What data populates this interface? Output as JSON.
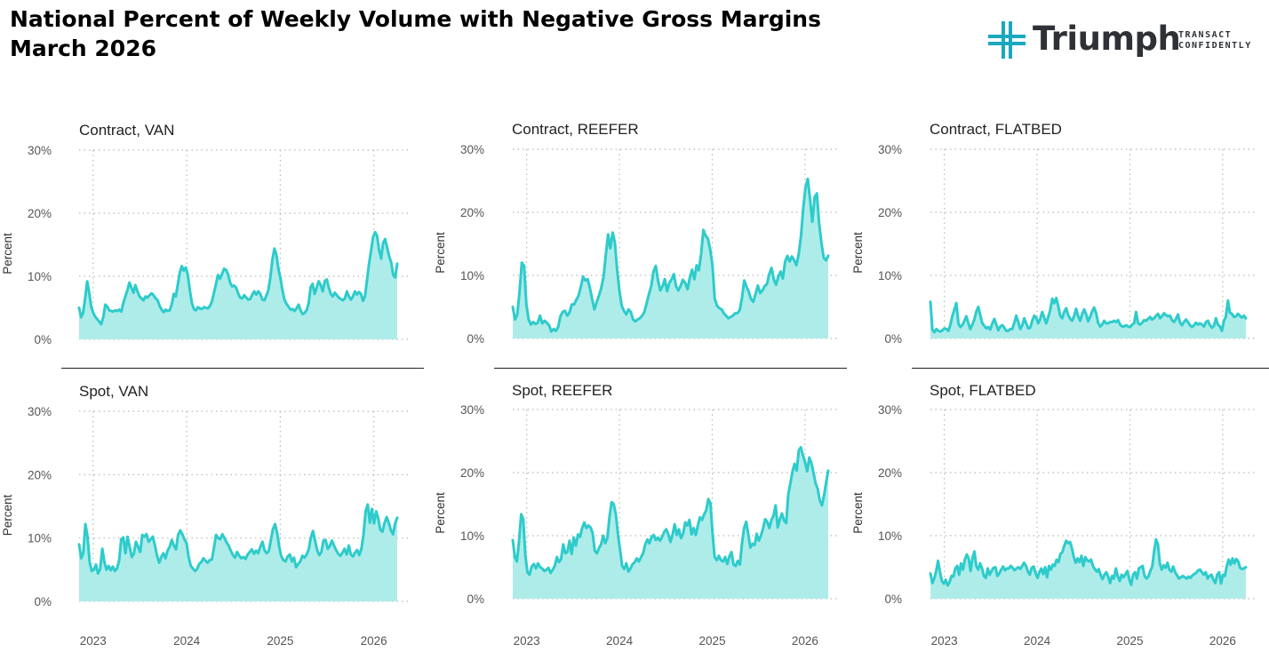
{
  "header": {
    "title_line1": "National Percent of Weekly Volume with Negative Gross Margins",
    "title_line2": "March 2026"
  },
  "logo": {
    "name": "Triumph",
    "tagline_line1": "TRANSACT",
    "tagline_line2": "CONFIDENTLY"
  },
  "colors": {
    "line": "#2ecbcb",
    "fill": "#aeecea",
    "grid": "#b8b8b8",
    "logo_cross": "#1aa9bd",
    "logo_text": "#2e3237"
  },
  "chart_data": [
    {
      "type": "area",
      "title": "Contract, VAN",
      "ylabel": "Percent",
      "ylim": [
        0,
        30
      ],
      "yticks": [
        "0%",
        "10%",
        "20%",
        "30%"
      ],
      "xticks": [
        "2023",
        "2024",
        "2025",
        "2026"
      ],
      "x_start": 2022.85,
      "x_end": 2026.25,
      "values": [
        5,
        3.5,
        4.2,
        6.5,
        9.2,
        7.5,
        5.2,
        4.2,
        3.6,
        3.2,
        2.8,
        2.4,
        3.5,
        5.5,
        5.2,
        4.6,
        4.5,
        4.4,
        4.6,
        4.5,
        4.7,
        4.4,
        5.8,
        6.8,
        7.8,
        9,
        8.2,
        7.4,
        8.6,
        7.6,
        6.8,
        6.5,
        6.2,
        6.8,
        6.6,
        7,
        7.3,
        7,
        6.5,
        6.2,
        5.3,
        4.7,
        4.3,
        4.7,
        4.5,
        4.6,
        5.5,
        7.2,
        6.8,
        8.6,
        10.6,
        11.6,
        10.9,
        11.4,
        10.2,
        7.8,
        5.8,
        4.8,
        4.6,
        5.1,
        4.9,
        4.8,
        5.1,
        5,
        4.9,
        5.3,
        6,
        7.4,
        8.8,
        10.2,
        9.6,
        10.4,
        11.2,
        11,
        10.3,
        9,
        8.4,
        8.5,
        8.2,
        7.3,
        6.6,
        6.5,
        7,
        6.6,
        6.3,
        6.4,
        7.1,
        7.6,
        7.1,
        7.6,
        7.2,
        6.3,
        6.2,
        6.9,
        7.8,
        9.9,
        12.6,
        14.4,
        13.4,
        11.2,
        9.7,
        7.8,
        6.3,
        5.6,
        5.2,
        4.7,
        4.8,
        4.5,
        4.9,
        5.5,
        4.6,
        4,
        4.2,
        4.6,
        5.7,
        8.3,
        8.8,
        7.2,
        8.2,
        9.2,
        8.6,
        7.6,
        9.2,
        9.5,
        8.2,
        7.2,
        6.8,
        7.4,
        7,
        6.6,
        6.4,
        6.2,
        6.5,
        7.6,
        6.8,
        6.3,
        6.8,
        7.6,
        7.1,
        7.5,
        7.2,
        6.1,
        6.8,
        9.4,
        12,
        14,
        16.2,
        17,
        16.4,
        14.2,
        12.8,
        15.3,
        15.9,
        14.5,
        13.2,
        12.2,
        10.2,
        9.8,
        12
      ]
    },
    {
      "type": "area",
      "title": "Contract, REEFER",
      "ylabel": "Percent",
      "ylim": [
        0,
        30
      ],
      "yticks": [
        "0%",
        "10%",
        "20%",
        "30%"
      ],
      "xticks": [
        "2023",
        "2024",
        "2025",
        "2026"
      ],
      "x_start": 2022.85,
      "x_end": 2026.25,
      "values": [
        5,
        3,
        3.8,
        7.5,
        12,
        11.5,
        5.4,
        3,
        2.2,
        2.6,
        2.3,
        2.5,
        3.6,
        2.4,
        2.8,
        2.5,
        2.1,
        1.1,
        1.5,
        1.2,
        1.8,
        3.5,
        4.2,
        4.4,
        3.6,
        4.1,
        5.4,
        5.4,
        6.1,
        6.8,
        8.2,
        9.8,
        9.2,
        9.4,
        8,
        6.2,
        4.6,
        5.8,
        6.8,
        8,
        9.8,
        13.2,
        16.5,
        14.3,
        16.8,
        15.2,
        10.8,
        7.6,
        5.2,
        4.4,
        3.8,
        4.6,
        4.2,
        3,
        2.7,
        3,
        3.2,
        3.6,
        4.2,
        5.6,
        7,
        8.3,
        10.6,
        11.5,
        9.2,
        7.6,
        8.3,
        9.4,
        7.5,
        8.8,
        9.4,
        10.2,
        8.2,
        7.6,
        8.4,
        9.3,
        8.8,
        7.8,
        9.6,
        10.9,
        9.4,
        11.6,
        10.8,
        13.4,
        17.2,
        16.3,
        15.8,
        14.1,
        11.6,
        6.3,
        5.2,
        4.8,
        4.6,
        4,
        3.6,
        3.2,
        3.4,
        3.6,
        4,
        4,
        4.5,
        6.4,
        9.2,
        8.2,
        7.4,
        6.2,
        5.8,
        7.1,
        8.4,
        7.2,
        7.6,
        8.3,
        8.6,
        10.2,
        11.2,
        9.4,
        8.5,
        9.8,
        10.6,
        9.5,
        12.2,
        13.1,
        12.2,
        13,
        12.4,
        11.6,
        13.4,
        16.3,
        20.7,
        24,
        25.3,
        22,
        18.5,
        22.4,
        23,
        18.2,
        15.2,
        12.8,
        12.4,
        13.1
      ]
    },
    {
      "type": "area",
      "title": "Contract, FLATBED",
      "ylabel": "Percent",
      "ylim": [
        0,
        30
      ],
      "yticks": [
        "0%",
        "10%",
        "20%",
        "30%"
      ],
      "xticks": [
        "2023",
        "2024",
        "2025",
        "2026"
      ],
      "x_start": 2022.85,
      "x_end": 2026.25,
      "values": [
        5.8,
        1.4,
        1,
        1.5,
        1.2,
        1.1,
        1.3,
        1.6,
        1.5,
        1.2,
        2.2,
        3.6,
        4.6,
        5.6,
        2.4,
        1.8,
        2.1,
        2.8,
        3.5,
        2.4,
        1.5,
        2.2,
        3,
        4.3,
        5,
        3.6,
        2.4,
        2,
        1.6,
        1.8,
        1.4,
        2.4,
        3.1,
        2.2,
        1.3,
        1.9,
        2.1,
        1.7,
        1.2,
        1.2,
        1.5,
        1.5,
        2.5,
        3.6,
        2.6,
        1.5,
        2.1,
        3.2,
        2.4,
        1.6,
        1.7,
        2.8,
        3.6,
        3.3,
        2.4,
        3.1,
        4.2,
        3.3,
        2.4,
        3.4,
        4.5,
        6.3,
        5.6,
        6.4,
        5.2,
        3.6,
        3.2,
        4.2,
        4.8,
        3.7,
        3.1,
        2.8,
        3.6,
        4.7,
        3.5,
        2.8,
        3.9,
        4.6,
        3.8,
        2.7,
        3.4,
        4.3,
        4.9,
        4,
        2.5,
        1.9,
        2.2,
        2.8,
        2.4,
        2.4,
        2.6,
        2.6,
        2.8,
        2.6,
        2.9,
        2.2,
        1.9,
        1.9,
        2.1,
        1.9,
        1.8,
        2.2,
        2.4,
        4.2,
        2.4,
        2.2,
        2.5,
        2.9,
        2.8,
        3.1,
        3.4,
        3,
        3.2,
        3.6,
        3.9,
        3.2,
        3.5,
        4,
        3.7,
        3.5,
        3.6,
        2.9,
        2.6,
        3.1,
        3.8,
        2.5,
        2.1,
        2.6,
        3,
        2.6,
        2.1,
        1.8,
        2.1,
        2.5,
        2.2,
        2.4,
        2.2,
        1.9,
        2.6,
        2.8,
        2.1,
        1.7,
        2,
        3.2,
        2.2,
        1.9,
        1.2,
        2.8,
        3.5,
        6,
        4.1,
        3.9,
        3.4,
        3.5,
        3.9,
        3.6,
        3.3,
        3.6,
        3.2
      ]
    },
    {
      "type": "area",
      "title": "Spot, VAN",
      "ylabel": "Percent",
      "ylim": [
        0,
        30
      ],
      "yticks": [
        "0%",
        "10%",
        "20%",
        "30%"
      ],
      "xticks": [
        "2023",
        "2024",
        "2025",
        "2026"
      ],
      "x_start": 2022.85,
      "x_end": 2026.25,
      "values": [
        9,
        6.8,
        7.6,
        12.2,
        10.2,
        6.2,
        4.8,
        5,
        5.8,
        4.4,
        5.1,
        8.3,
        6.2,
        5,
        5.6,
        4.9,
        5.5,
        4.8,
        5.2,
        6.4,
        9.8,
        10.1,
        7.6,
        10.2,
        8.6,
        7,
        7.5,
        9.4,
        8.6,
        7.8,
        10.5,
        10.2,
        10.6,
        9.4,
        9.8,
        10.2,
        8.8,
        7.2,
        6.1,
        7,
        7.6,
        6.8,
        8,
        8.6,
        9.7,
        8.8,
        8.2,
        10.5,
        11.2,
        10.6,
        9.8,
        9.2,
        7,
        5.6,
        5.2,
        4.8,
        5.1,
        5.9,
        6.2,
        6.8,
        6.4,
        6.1,
        6.5,
        6.6,
        8.4,
        10.5,
        10,
        9.8,
        10.6,
        10,
        9.3,
        8.8,
        8,
        7.3,
        6.9,
        7.8,
        7.2,
        6.8,
        7,
        6.7,
        7.4,
        7.8,
        8.2,
        7.5,
        8,
        7.6,
        8.6,
        9.4,
        8.1,
        7.6,
        7.9,
        9.6,
        11.4,
        12.2,
        10.8,
        8.6,
        7.1,
        6.5,
        6.3,
        7.1,
        7.4,
        6.3,
        6.9,
        5.4,
        5.9,
        6.3,
        7.2,
        6.9,
        7.4,
        8.2,
        10.1,
        11.1,
        9.6,
        8.1,
        7.3,
        7.8,
        9.6,
        9.7,
        8.3,
        8.7,
        9.6,
        8.8,
        8.1,
        7.5,
        7.2,
        7.7,
        8.3,
        7.4,
        8.8,
        7.4,
        7.1,
        7.7,
        8.1,
        7.3,
        8.3,
        10.6,
        14.2,
        15.3,
        12.4,
        14.6,
        12.3,
        14.2,
        13.1,
        11.3,
        11,
        12.4,
        13.3,
        12.4,
        11.2,
        10.6,
        12.3,
        13.2
      ]
    },
    {
      "type": "area",
      "title": "Spot, REEFER",
      "ylabel": "Percent",
      "ylim": [
        0,
        30
      ],
      "yticks": [
        "0%",
        "10%",
        "20%",
        "30%"
      ],
      "xticks": [
        "2023",
        "2024",
        "2025",
        "2026"
      ],
      "x_start": 2022.85,
      "x_end": 2026.25,
      "values": [
        9.3,
        6.6,
        5.9,
        9.2,
        13.4,
        12.6,
        6.8,
        4.2,
        3.8,
        5.1,
        5.5,
        4.8,
        5.6,
        5,
        4.8,
        4.4,
        4.6,
        4.9,
        4.1,
        4.6,
        5.2,
        6.6,
        5.8,
        6.3,
        8.6,
        7.2,
        7.4,
        9.2,
        7.1,
        9.7,
        8.4,
        10.2,
        9.8,
        11.2,
        12.1,
        11.2,
        11.6,
        11.3,
        10.4,
        7.6,
        7.2,
        8,
        8.6,
        10,
        8.8,
        9.6,
        13,
        15.3,
        15,
        13.4,
        10.3,
        7.8,
        5.2,
        4.7,
        5.6,
        4.3,
        4.8,
        5.5,
        5.8,
        6.4,
        5.9,
        6.6,
        7.2,
        8.6,
        9.4,
        8.8,
        9.8,
        10.1,
        9.3,
        9.7,
        9.2,
        9.8,
        10.6,
        11,
        10.2,
        9,
        10.2,
        11.8,
        10.1,
        11,
        9.6,
        10.3,
        12.1,
        11.6,
        12.5,
        10.2,
        11.2,
        10.1,
        11.6,
        12.9,
        12.5,
        13.4,
        14,
        15.8,
        15.1,
        10.4,
        6.6,
        6.1,
        6.8,
        6.1,
        5.9,
        6.6,
        5.5,
        6.7,
        7.4,
        5.4,
        5.2,
        6,
        5.4,
        8.8,
        11.2,
        12.2,
        10.2,
        8.1,
        8.7,
        8.5,
        10.3,
        9.2,
        10,
        11.1,
        12.6,
        12.2,
        11.2,
        12.5,
        13.2,
        14.8,
        11.3,
        12.6,
        13.5,
        12.4,
        12,
        16.5,
        18.3,
        20.2,
        21.4,
        20.3,
        23.5,
        24,
        22.7,
        21.6,
        20.2,
        22.4,
        21.5,
        20,
        18.3,
        17.4,
        15.6,
        14.8,
        16.4,
        18.4,
        20.3
      ]
    },
    {
      "type": "area",
      "title": "Spot, FLATBED",
      "ylabel": "Percent",
      "ylim": [
        0,
        30
      ],
      "yticks": [
        "0%",
        "10%",
        "20%",
        "30%"
      ],
      "xticks": [
        "2023",
        "2024",
        "2025",
        "2026"
      ],
      "x_start": 2022.85,
      "x_end": 2026.25,
      "values": [
        4,
        2.5,
        3.2,
        4.4,
        6,
        4.2,
        2.8,
        2.4,
        3,
        2.1,
        2.6,
        3.6,
        3.5,
        4.8,
        5.2,
        3.8,
        5.6,
        4.6,
        6.2,
        7,
        6.4,
        4.4,
        6.4,
        7.5,
        5.2,
        4.6,
        5.6,
        4.8,
        3.6,
        3.3,
        4.8,
        3.8,
        4.4,
        4.9,
        5,
        3.6,
        4,
        4.6,
        5.1,
        4.5,
        4.8,
        4.8,
        5.2,
        4.9,
        4.5,
        4.8,
        5,
        4.7,
        5.2,
        5.7,
        5.2,
        4.3,
        3.8,
        4.9,
        5.1,
        4.1,
        3.3,
        4.2,
        4.8,
        3.9,
        5,
        3.4,
        5.2,
        4.6,
        5.4,
        5.2,
        6.2,
        5.8,
        7.1,
        7.4,
        8.4,
        9.2,
        8.8,
        9,
        8,
        6.6,
        5.7,
        6.4,
        5.8,
        6.8,
        5.2,
        6.6,
        6.1,
        5.9,
        6.2,
        5.2,
        4.7,
        4.3,
        4.7,
        3.8,
        3.1,
        3.8,
        4.2,
        3.5,
        2.5,
        3.6,
        3.2,
        4.8,
        3.6,
        2.8,
        3.8,
        3.4,
        3.9,
        4.4,
        3.1,
        2.2,
        3.8,
        4.2,
        3.2,
        4.8,
        5,
        5.2,
        3.6,
        3.2,
        3.5,
        4.4,
        5.1,
        7.5,
        9.4,
        8.6,
        5.6,
        4.6,
        5.3,
        4.9,
        5.7,
        4.6,
        4.3,
        5.1,
        4.2,
        3.7,
        3.2,
        3.4,
        3.6,
        3.4,
        3.2,
        3.5,
        3.3,
        3.7,
        3.9,
        4.1,
        4.5,
        4.6,
        4.2,
        3.8,
        4.2,
        3.2,
        3.6,
        3.8,
        3,
        2.5,
        3.8,
        4.2,
        2.4,
        3.8,
        3.6,
        5.2,
        6.2,
        5.4,
        6.4,
        5.6,
        6.3,
        5.9,
        4.9,
        4.7,
        4.8,
        5
      ]
    }
  ]
}
